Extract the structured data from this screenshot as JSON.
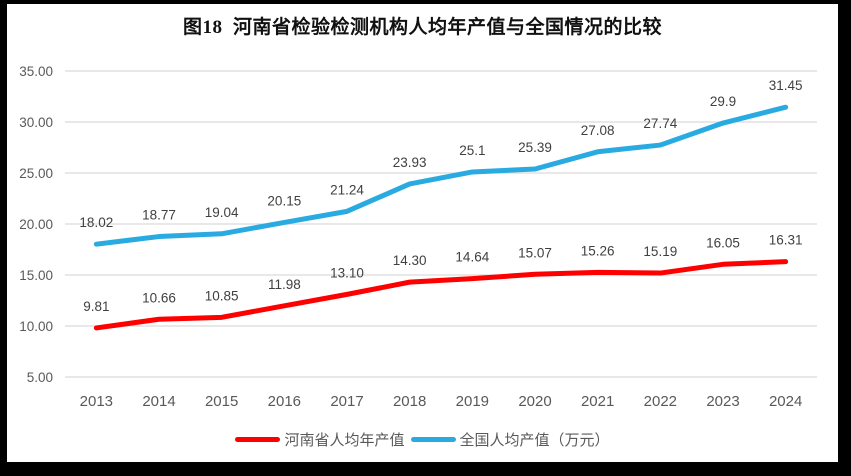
{
  "title": "图18  河南省检验检测机构人均年产值与全国情况的比较",
  "colors": {
    "henan_line": "#FF0000",
    "national_line": "#29ABE2",
    "gridline": "#D9D9D9",
    "axis_text": "#595959",
    "data_label_text": "#404040",
    "title_text": "#111111",
    "plot_background": "#FFFFFF",
    "frame_background": "#000000"
  },
  "legend": {
    "items": [
      {
        "label": "河南省人均年产值",
        "color": "#FF0000"
      },
      {
        "label": "全国人均产值（万元）",
        "color": "#29ABE2"
      }
    ]
  },
  "chart_data": {
    "type": "line",
    "title": "图18  河南省检验检测机构人均年产值与全国情况的比较",
    "categories": [
      "2013",
      "2014",
      "2015",
      "2016",
      "2017",
      "2018",
      "2019",
      "2020",
      "2021",
      "2022",
      "2023",
      "2024"
    ],
    "series": [
      {
        "name": "河南省人均年产值",
        "color": "#FF0000",
        "values": [
          9.81,
          10.66,
          10.85,
          11.98,
          13.1,
          14.3,
          14.64,
          15.07,
          15.26,
          15.19,
          16.05,
          16.31
        ],
        "data_labels": [
          "9.81",
          "10.66",
          "10.85",
          "11.98",
          "13.10",
          "14.30",
          "14.64",
          "15.07",
          "15.26",
          "15.19",
          "16.05",
          "16.31"
        ]
      },
      {
        "name": "全国人均产值（万元）",
        "color": "#29ABE2",
        "values": [
          18.02,
          18.77,
          19.04,
          20.15,
          21.24,
          23.93,
          25.1,
          25.39,
          27.08,
          27.74,
          29.9,
          31.45
        ],
        "data_labels": [
          "18.02",
          "18.77",
          "19.04",
          "20.15",
          "21.24",
          "23.93",
          "25.1",
          "25.39",
          "27.08",
          "27.74",
          "29.9",
          "31.45"
        ]
      }
    ],
    "xlabel": "",
    "ylabel": "",
    "y_axis": {
      "min": 5,
      "max": 35,
      "step": 5,
      "tick_labels": [
        "5.00",
        "10.00",
        "15.00",
        "20.00",
        "25.00",
        "30.00",
        "35.00"
      ]
    },
    "grid": true,
    "legend_position": "bottom"
  }
}
